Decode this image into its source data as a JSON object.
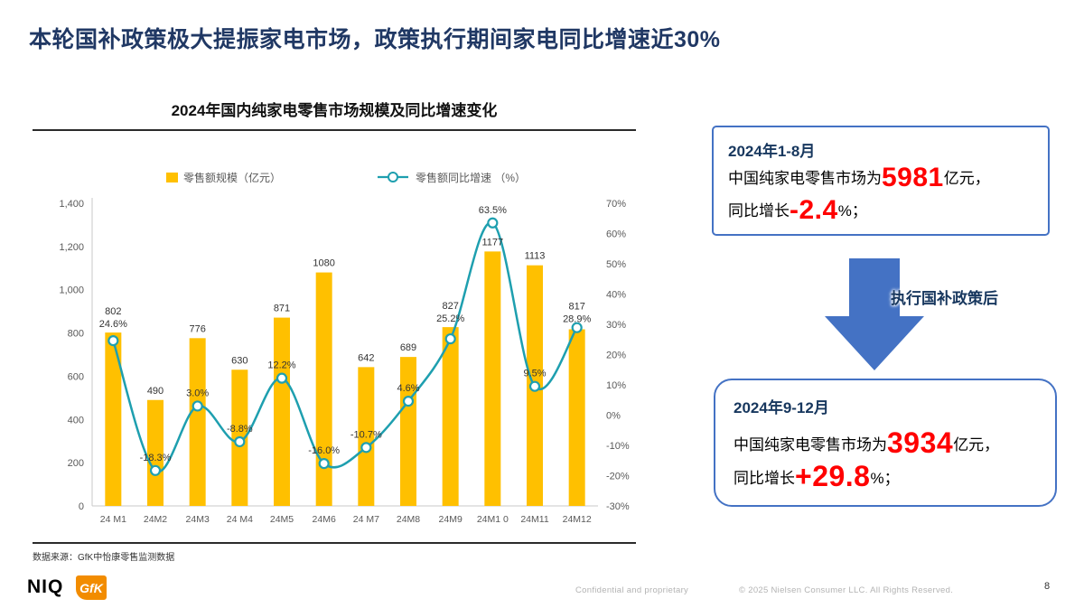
{
  "slide": {
    "title": "本轮国补政策极大提振家电市场，政策执行期间家电同比增速近30%",
    "page_number": "8"
  },
  "chart": {
    "title": "2024年国内纯家电零售市场规模及同比增速变化",
    "source": "数据来源：GfK中怡康零售监测数据"
  },
  "chart_data": {
    "type": "bar+line combo",
    "title": "2024年国内纯家电零售市场规模及同比增速变化",
    "categories": [
      "24 M1",
      "24M2",
      "24M3",
      "24 M4",
      "24M5",
      "24M6",
      "24 M7",
      "24M8",
      "24M9",
      "24M1 0",
      "24M11",
      "24M12"
    ],
    "series": [
      {
        "name": "零售额规模（亿元）",
        "type": "bar",
        "axis": "left",
        "values": [
          802,
          490,
          776,
          630,
          871,
          1080,
          642,
          689,
          827,
          1177,
          1113,
          817
        ]
      },
      {
        "name": "零售额同比增速 （%）",
        "type": "line",
        "axis": "right",
        "values": [
          24.6,
          -18.3,
          3.0,
          -8.8,
          12.2,
          -16.0,
          -10.7,
          4.6,
          25.2,
          63.5,
          9.5,
          28.9
        ]
      }
    ],
    "bar_labels": [
      "802",
      "490",
      "776",
      "630",
      "871",
      "1080",
      "642",
      "689",
      "827",
      "1177",
      "1113",
      "817"
    ],
    "line_labels": [
      "24.6%",
      "-18.3%",
      "3.0%",
      "-8.8%",
      "12.2%",
      "-16.0%",
      "-10.7%",
      "4.6%",
      "25.2%",
      "63.5%",
      "9.5%",
      "28.9%"
    ],
    "left_axis": {
      "min": 0,
      "max": 1400,
      "step": 200,
      "tick_labels": [
        "0",
        "200",
        "400",
        "600",
        "800",
        "1,000",
        "1,200",
        "1,400"
      ]
    },
    "right_axis": {
      "min": -30,
      "max": 70,
      "step": 10,
      "tick_labels": [
        "-30%",
        "-20%",
        "-10%",
        "0%",
        "10%",
        "20%",
        "30%",
        "40%",
        "50%",
        "60%",
        "70%"
      ]
    },
    "bar_color": "#FFC000",
    "line_color": "#1E9FAF",
    "legend_position": "top",
    "grid": false
  },
  "callouts": {
    "box1": {
      "period": "2024年1-8月",
      "line1_prefix": "中国纯家电零售市场为",
      "line1_value": "5981",
      "line1_suffix": "亿元，",
      "line2_prefix": "同比增长",
      "line2_value": "-2.4",
      "line2_suffix": "%；"
    },
    "arrow_label": "执行国补政策后",
    "box2": {
      "period": "2024年9-12月",
      "line1_prefix": "中国纯家电零售市场为",
      "line1_value": "3934",
      "line1_suffix": "亿元，",
      "line2_prefix": "同比增长",
      "line2_value": "+29.8",
      "line2_suffix": "%；"
    }
  },
  "footer": {
    "niq_logo": "NIQ",
    "gfk_logo": "GfK",
    "confidential": "Confidential and proprietary",
    "copyright": "© 2025 Nielsen Consumer LLC. All Rights Reserved."
  },
  "colors": {
    "title_navy": "#203864",
    "callout_navy": "#17375E",
    "accent_blue": "#4472C4",
    "highlight_red": "#FF0000",
    "bar_gold": "#FFC000",
    "line_teal": "#1E9FAF"
  }
}
